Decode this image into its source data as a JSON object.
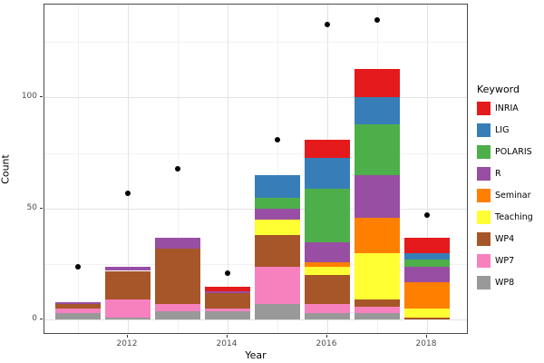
{
  "chart_data": {
    "type": "bar",
    "stacked": true,
    "title": "",
    "xlabel": "Year",
    "ylabel": "Count",
    "legend_title": "Keyword",
    "legend_position": "right",
    "grid": true,
    "background": "#ffffff",
    "panel_border_color": "#4a4a4a",
    "categories": [
      "2011",
      "2012",
      "2013",
      "2014",
      "2015",
      "2016",
      "2017",
      "2018"
    ],
    "x_tick_labels": [
      "2012",
      "2014",
      "2016",
      "2018"
    ],
    "x_tick_years": [
      2012,
      2014,
      2016,
      2018
    ],
    "y_tick_labels": [
      "0",
      "50",
      "100"
    ],
    "y_ticks_major": [
      0,
      50,
      100
    ],
    "y_ticks_minor": [
      25,
      75,
      125
    ],
    "ylim": [
      -6.8,
      142
    ],
    "stack_note": "first legend level drawn on top of stack",
    "series": [
      {
        "name": "INRIA",
        "color": "#E41A1C",
        "values": [
          0,
          0,
          0,
          2,
          0,
          8,
          13,
          7
        ]
      },
      {
        "name": "LIG",
        "color": "#377EB8",
        "values": [
          0,
          0,
          0,
          0,
          10,
          14,
          12,
          3
        ]
      },
      {
        "name": "POLARIS",
        "color": "#4DAF4A",
        "values": [
          0,
          0,
          0,
          0,
          5,
          24,
          23,
          3
        ]
      },
      {
        "name": "R",
        "color": "#984EA3",
        "values": [
          1,
          2,
          5,
          1,
          5,
          9,
          19,
          7
        ]
      },
      {
        "name": "Seminar",
        "color": "#FF7F00",
        "values": [
          0,
          0,
          0,
          0,
          0,
          2,
          16,
          12
        ]
      },
      {
        "name": "Teaching",
        "color": "#FFFF33",
        "values": [
          0,
          0,
          0,
          0,
          7,
          4,
          21,
          4
        ]
      },
      {
        "name": "WP4",
        "color": "#A65628",
        "values": [
          2,
          13,
          25,
          7,
          14,
          13,
          3,
          1
        ]
      },
      {
        "name": "WP7",
        "color": "#F781BF",
        "values": [
          2,
          8,
          3,
          1,
          17,
          4,
          3,
          0
        ]
      },
      {
        "name": "WP8",
        "color": "#999999",
        "values": [
          3,
          1,
          4,
          4,
          7,
          3,
          3,
          0
        ]
      }
    ],
    "bar_totals": [
      8,
      24,
      37,
      15,
      65,
      81,
      113,
      37
    ],
    "points": {
      "name": "yearly-total-points",
      "color": "#000000",
      "values": [
        24,
        57,
        68,
        21,
        81,
        133,
        135,
        47
      ]
    }
  }
}
